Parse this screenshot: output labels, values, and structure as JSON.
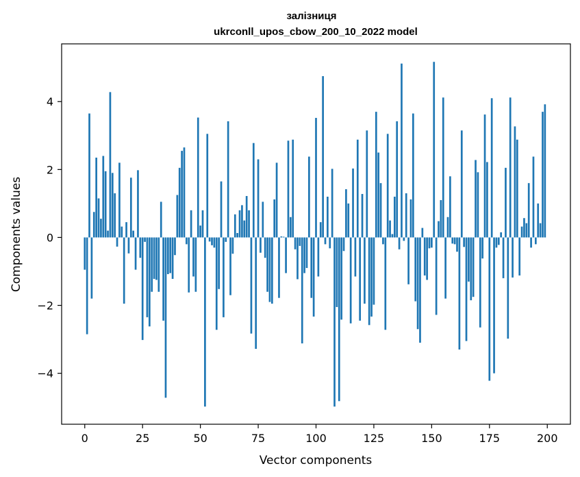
{
  "chart_data": {
    "type": "bar",
    "title": "залізниця",
    "subtitle": "ukrconll_upos_cbow_200_10_2022 model",
    "xlabel": "Vector components",
    "ylabel": "Components values",
    "xlim": [
      -10,
      210
    ],
    "ylim": [
      -5.5,
      5.7
    ],
    "xticks": [
      0,
      25,
      50,
      75,
      100,
      125,
      150,
      175,
      200
    ],
    "yticks": [
      -4,
      -2,
      0,
      2,
      4
    ],
    "xtick_labels": [
      "0",
      "25",
      "50",
      "75",
      "100",
      "125",
      "150",
      "175",
      "200"
    ],
    "ytick_labels": [
      "−4",
      "−2",
      "0",
      "2",
      "4"
    ],
    "grid": false,
    "bar_color": "#1f77b4",
    "x": [
      0,
      1,
      2,
      3,
      4,
      5,
      6,
      7,
      8,
      9,
      10,
      11,
      12,
      13,
      14,
      15,
      16,
      17,
      18,
      19,
      20,
      21,
      22,
      23,
      24,
      25,
      26,
      27,
      28,
      29,
      30,
      31,
      32,
      33,
      34,
      35,
      36,
      37,
      38,
      39,
      40,
      41,
      42,
      43,
      44,
      45,
      46,
      47,
      48,
      49,
      50,
      51,
      52,
      53,
      54,
      55,
      56,
      57,
      58,
      59,
      60,
      61,
      62,
      63,
      64,
      65,
      66,
      67,
      68,
      69,
      70,
      71,
      72,
      73,
      74,
      75,
      76,
      77,
      78,
      79,
      80,
      81,
      82,
      83,
      84,
      85,
      86,
      87,
      88,
      89,
      90,
      91,
      92,
      93,
      94,
      95,
      96,
      97,
      98,
      99,
      100,
      101,
      102,
      103,
      104,
      105,
      106,
      107,
      108,
      109,
      110,
      111,
      112,
      113,
      114,
      115,
      116,
      117,
      118,
      119,
      120,
      121,
      122,
      123,
      124,
      125,
      126,
      127,
      128,
      129,
      130,
      131,
      132,
      133,
      134,
      135,
      136,
      137,
      138,
      139,
      140,
      141,
      142,
      143,
      144,
      145,
      146,
      147,
      148,
      149,
      150,
      151,
      152,
      153,
      154,
      155,
      156,
      157,
      158,
      159,
      160,
      161,
      162,
      163,
      164,
      165,
      166,
      167,
      168,
      169,
      170,
      171,
      172,
      173,
      174,
      175,
      176,
      177,
      178,
      179,
      180,
      181,
      182,
      183,
      184,
      185,
      186,
      187,
      188,
      189,
      190,
      191,
      192,
      193,
      194,
      195,
      196,
      197,
      198,
      199
    ],
    "values": [
      -0.95,
      -2.85,
      3.65,
      -1.8,
      0.75,
      2.35,
      1.15,
      0.55,
      2.4,
      1.95,
      0.2,
      4.28,
      1.9,
      1.3,
      -0.27,
      2.2,
      0.32,
      -1.95,
      0.45,
      -0.47,
      1.76,
      0.2,
      -0.95,
      1.98,
      -0.6,
      -3.02,
      -0.13,
      -2.35,
      -2.62,
      -1.6,
      -1.22,
      -1.25,
      -1.6,
      1.05,
      -2.45,
      -4.72,
      -1.08,
      -1.05,
      -1.22,
      -0.52,
      1.25,
      2.05,
      2.55,
      2.65,
      -0.2,
      -1.62,
      0.8,
      -1.15,
      -1.6,
      3.53,
      0.35,
      0.8,
      -4.98,
      3.05,
      -0.12,
      -0.23,
      -0.3,
      -2.72,
      -1.52,
      1.65,
      -2.35,
      -0.13,
      3.42,
      -1.7,
      -0.48,
      0.68,
      0.13,
      0.8,
      0.95,
      0.5,
      1.22,
      0.8,
      -2.83,
      2.78,
      -3.28,
      2.3,
      -0.45,
      1.05,
      -0.6,
      -1.6,
      -1.9,
      -1.95,
      1.12,
      2.2,
      -1.78,
      0.03,
      0.02,
      -1.05,
      2.85,
      0.6,
      2.88,
      -0.35,
      -1.23,
      -0.25,
      -3.12,
      -1.05,
      -0.9,
      2.38,
      -1.78,
      -2.33,
      3.52,
      -1.15,
      0.45,
      4.75,
      -0.2,
      1.2,
      -0.32,
      2.02,
      -4.98,
      -2.05,
      -4.82,
      -2.42,
      -0.4,
      1.42,
      1.0,
      -2.53,
      2.03,
      -1.15,
      2.88,
      -2.45,
      1.28,
      -1.95,
      3.15,
      -2.58,
      -2.33,
      -1.98,
      3.7,
      2.5,
      1.6,
      -0.2,
      -2.72,
      3.05,
      0.5,
      0.1,
      1.2,
      3.42,
      -0.35,
      5.12,
      -0.1,
      1.3,
      -1.38,
      1.12,
      3.65,
      -1.88,
      -2.7,
      -3.1,
      0.28,
      -1.12,
      -1.25,
      -0.32,
      -0.3,
      5.17,
      -2.28,
      0.48,
      1.1,
      4.12,
      -1.8,
      0.6,
      1.8,
      -0.18,
      -0.2,
      -0.42,
      -3.3,
      3.15,
      -0.28,
      -3.05,
      -1.3,
      -1.85,
      -1.75,
      2.28,
      1.92,
      -2.65,
      -0.62,
      3.62,
      2.22,
      -4.22,
      4.1,
      -4.0,
      -0.3,
      -0.22,
      0.15,
      -1.2,
      2.05,
      -2.98,
      4.12,
      -1.18,
      3.27,
      2.88,
      -1.12,
      0.32,
      0.57,
      0.42,
      1.6,
      -0.3,
      2.38,
      -0.2,
      1.0,
      0.42,
      3.7,
      3.92
    ]
  }
}
